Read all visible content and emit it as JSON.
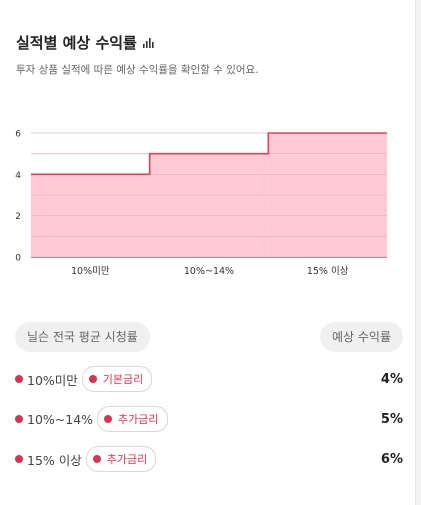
{
  "header": {
    "title": "실적별 예상 수익률",
    "subtitle": "투자 상품 실적에 따른 예상 수익률을 확인할 수 있어요."
  },
  "chart_data": {
    "type": "area",
    "step": true,
    "categories": [
      "10%미만",
      "10%~14%",
      "15% 이상"
    ],
    "values": [
      4,
      5,
      6
    ],
    "ylim": [
      0,
      6
    ],
    "yticks": [
      "0",
      "2",
      "4",
      "6"
    ],
    "grid": true,
    "colors": {
      "fill": "#ffc4d0",
      "line": "#e3405f"
    }
  },
  "table": {
    "left_header": "닐슨 전국 평균 시청률",
    "right_header": "예상 수익률",
    "rows": [
      {
        "label": "10%미만",
        "tag": "기본금리",
        "value": "4%"
      },
      {
        "label": "10%~14%",
        "tag": "추가금리",
        "value": "5%"
      },
      {
        "label": "15% 이상",
        "tag": "추가금리",
        "value": "6%"
      }
    ]
  },
  "colors": {
    "accent": "#d6364f"
  },
  "icons": {
    "title_icon": "bar-chart-icon"
  }
}
